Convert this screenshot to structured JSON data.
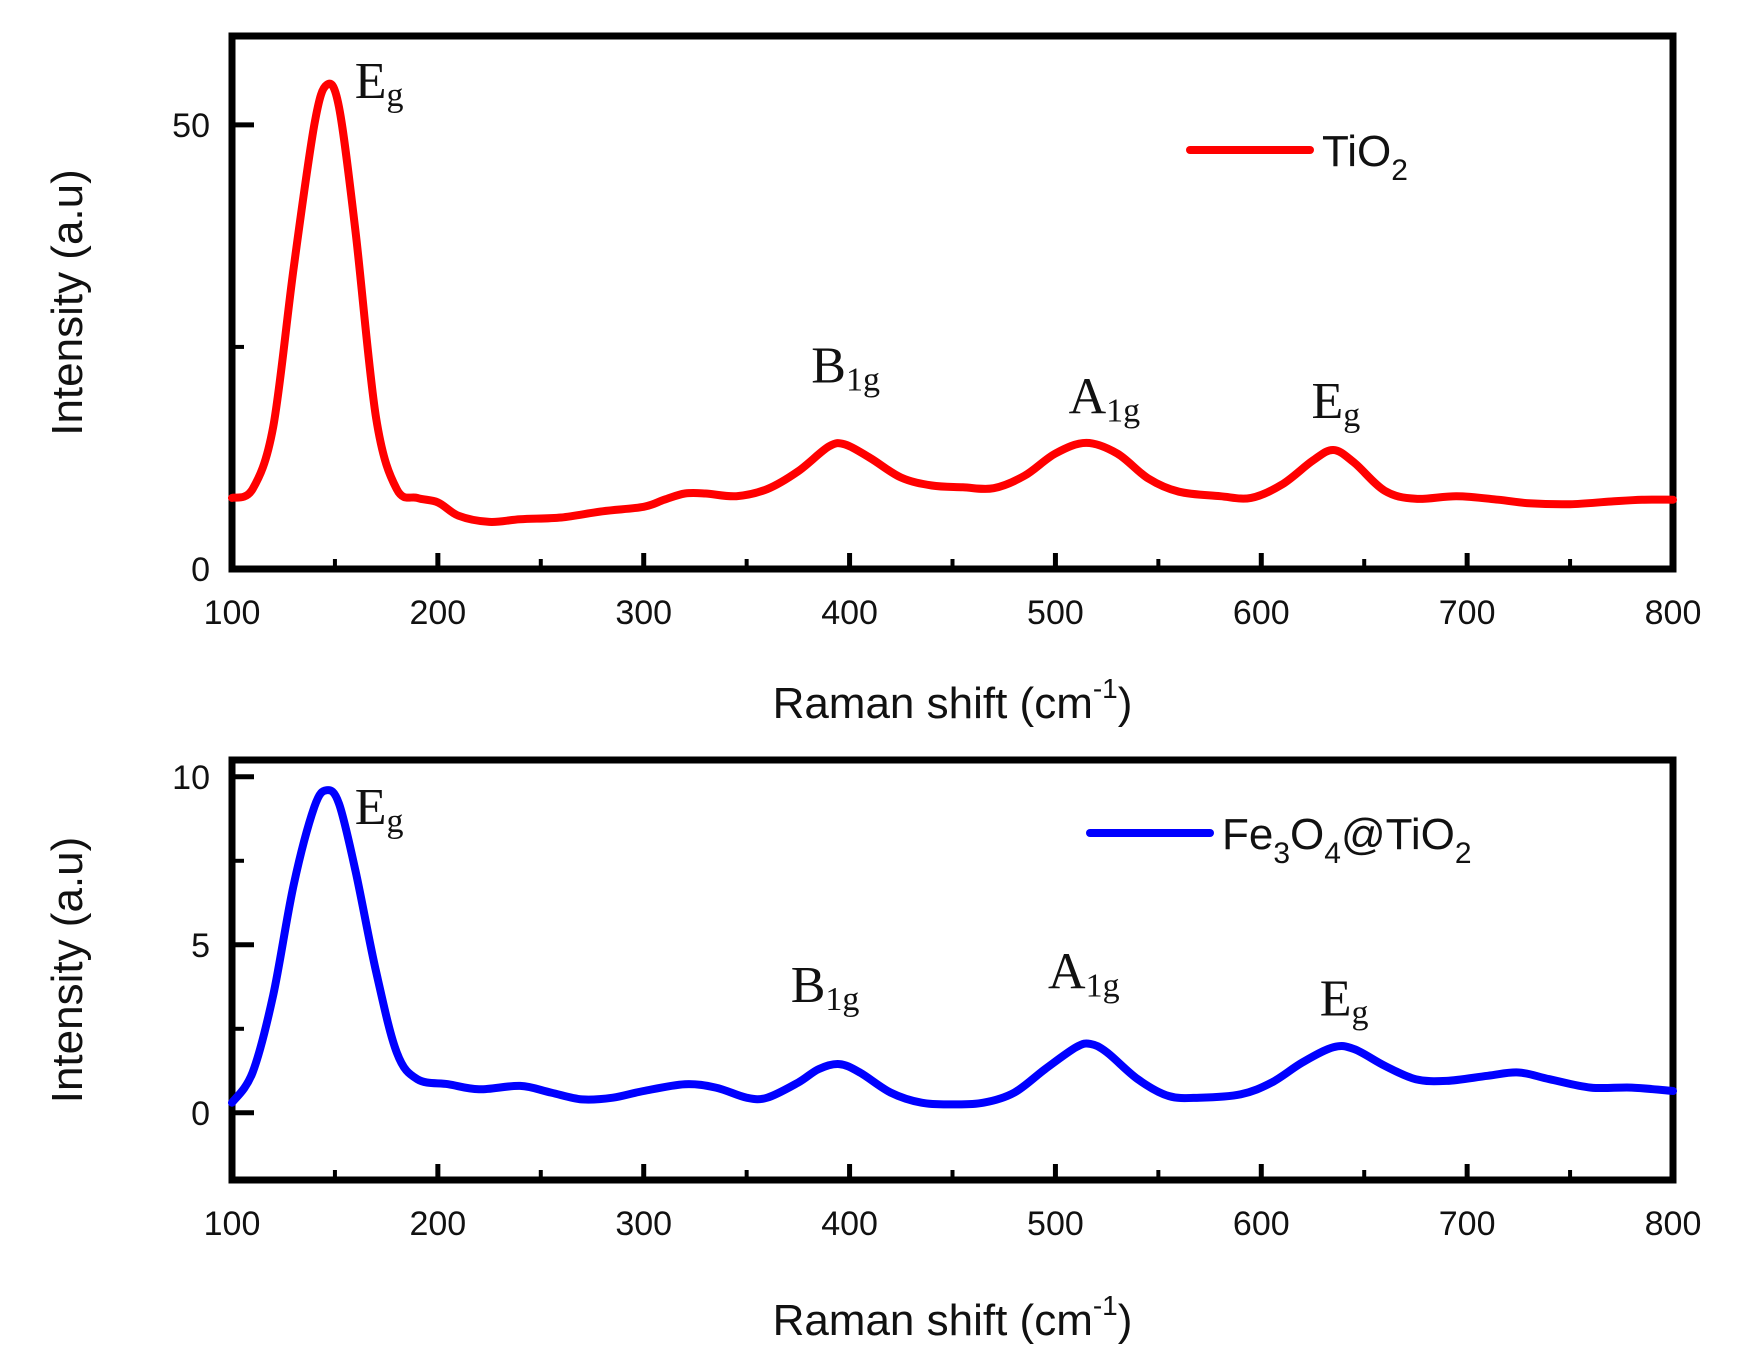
{
  "chart_data": [
    {
      "type": "line",
      "xlabel": "Raman shift (cm-1)",
      "xlabel_parts": {
        "main": "Raman shift (cm",
        "sup": "-1",
        "close": ")"
      },
      "ylabel": "Intensity (a.u)",
      "xlim": [
        100,
        800
      ],
      "ylim": [
        0,
        60
      ],
      "x_ticks": [
        100,
        200,
        300,
        400,
        500,
        600,
        700,
        800
      ],
      "y_tick_labels": [
        0,
        50
      ],
      "y_minor_ticks": [
        25
      ],
      "series": [
        {
          "name": "TiO2",
          "legend_parts": [
            {
              "t": "TiO",
              "sub": false
            },
            {
              "t": "2",
              "sub": true
            }
          ],
          "color": "#ff0000",
          "legend_position": "top-right",
          "points": [
            [
              100,
              8
            ],
            [
              110,
              9
            ],
            [
              120,
              16
            ],
            [
              130,
              34
            ],
            [
              140,
              50
            ],
            [
              146,
              54.5
            ],
            [
              152,
              52
            ],
            [
              160,
              38
            ],
            [
              170,
              17
            ],
            [
              180,
              9
            ],
            [
              190,
              8
            ],
            [
              200,
              7.5
            ],
            [
              210,
              6
            ],
            [
              225,
              5.3
            ],
            [
              240,
              5.6
            ],
            [
              260,
              5.8
            ],
            [
              280,
              6.5
            ],
            [
              300,
              7
            ],
            [
              310,
              7.8
            ],
            [
              320,
              8.5
            ],
            [
              330,
              8.5
            ],
            [
              345,
              8.2
            ],
            [
              360,
              9
            ],
            [
              375,
              11
            ],
            [
              390,
              13.8
            ],
            [
              398,
              14
            ],
            [
              410,
              12.5
            ],
            [
              425,
              10.3
            ],
            [
              440,
              9.4
            ],
            [
              455,
              9.2
            ],
            [
              470,
              9.1
            ],
            [
              485,
              10.5
            ],
            [
              500,
              13
            ],
            [
              515,
              14.2
            ],
            [
              530,
              13
            ],
            [
              545,
              10.2
            ],
            [
              560,
              8.7
            ],
            [
              580,
              8.2
            ],
            [
              595,
              8
            ],
            [
              610,
              9.5
            ],
            [
              625,
              12.2
            ],
            [
              635,
              13.4
            ],
            [
              645,
              12
            ],
            [
              660,
              8.8
            ],
            [
              675,
              7.9
            ],
            [
              695,
              8.2
            ],
            [
              715,
              7.8
            ],
            [
              730,
              7.4
            ],
            [
              750,
              7.3
            ],
            [
              770,
              7.6
            ],
            [
              785,
              7.8
            ],
            [
              800,
              7.8
            ]
          ]
        }
      ],
      "annotations": [
        {
          "main": "E",
          "sub": "g",
          "x": 146,
          "y": 53
        },
        {
          "main": "B",
          "sub": "1g",
          "x": 395,
          "y": 21
        },
        {
          "main": "A",
          "sub": "1g",
          "x": 520,
          "y": 17.5
        },
        {
          "main": "E",
          "sub": "g",
          "x": 638,
          "y": 17
        }
      ]
    },
    {
      "type": "line",
      "xlabel": "Raman shift (cm-1)",
      "xlabel_parts": {
        "main": "Raman shift (cm",
        "sup": "-1",
        "close": ")"
      },
      "ylabel": "Intensity (a.u)",
      "xlim": [
        100,
        800
      ],
      "ylim": [
        -2,
        10.5
      ],
      "x_ticks": [
        100,
        200,
        300,
        400,
        500,
        600,
        700,
        800
      ],
      "y_tick_labels": [
        0,
        5,
        10
      ],
      "y_minor_ticks": [
        2.5,
        7.5
      ],
      "series": [
        {
          "name": "Fe3O4@TiO2",
          "legend_parts": [
            {
              "t": "Fe",
              "sub": false
            },
            {
              "t": "3",
              "sub": true
            },
            {
              "t": "O",
              "sub": false
            },
            {
              "t": "4",
              "sub": true
            },
            {
              "t": "@TiO",
              "sub": false
            },
            {
              "t": "2",
              "sub": true
            }
          ],
          "color": "#0000ff",
          "legend_position": "top-right",
          "points": [
            [
              100,
              0.3
            ],
            [
              110,
              1.2
            ],
            [
              120,
              3.5
            ],
            [
              130,
              6.8
            ],
            [
              140,
              9.1
            ],
            [
              146,
              9.6
            ],
            [
              152,
              9.2
            ],
            [
              160,
              7.2
            ],
            [
              170,
              4.2
            ],
            [
              180,
              1.8
            ],
            [
              190,
              1.0
            ],
            [
              205,
              0.85
            ],
            [
              220,
              0.7
            ],
            [
              240,
              0.8
            ],
            [
              255,
              0.6
            ],
            [
              270,
              0.4
            ],
            [
              285,
              0.45
            ],
            [
              300,
              0.65
            ],
            [
              320,
              0.85
            ],
            [
              335,
              0.75
            ],
            [
              350,
              0.45
            ],
            [
              360,
              0.45
            ],
            [
              375,
              0.9
            ],
            [
              385,
              1.3
            ],
            [
              395,
              1.45
            ],
            [
              405,
              1.2
            ],
            [
              420,
              0.6
            ],
            [
              435,
              0.3
            ],
            [
              450,
              0.25
            ],
            [
              465,
              0.3
            ],
            [
              480,
              0.6
            ],
            [
              495,
              1.3
            ],
            [
              510,
              1.95
            ],
            [
              517,
              2.05
            ],
            [
              525,
              1.8
            ],
            [
              540,
              1.0
            ],
            [
              555,
              0.5
            ],
            [
              570,
              0.45
            ],
            [
              590,
              0.55
            ],
            [
              605,
              0.9
            ],
            [
              620,
              1.5
            ],
            [
              635,
              1.95
            ],
            [
              645,
              1.9
            ],
            [
              660,
              1.4
            ],
            [
              675,
              1.0
            ],
            [
              690,
              0.95
            ],
            [
              710,
              1.1
            ],
            [
              725,
              1.2
            ],
            [
              740,
              1.0
            ],
            [
              760,
              0.75
            ],
            [
              780,
              0.75
            ],
            [
              800,
              0.65
            ]
          ]
        }
      ],
      "annotations": [
        {
          "main": "E",
          "sub": "g",
          "x": 146,
          "y": 8.6
        },
        {
          "main": "B",
          "sub": "1g",
          "x": 385,
          "y": 3.3
        },
        {
          "main": "A",
          "sub": "1g",
          "x": 510,
          "y": 3.7
        },
        {
          "main": "E",
          "sub": "g",
          "x": 642,
          "y": 2.9
        }
      ]
    }
  ]
}
